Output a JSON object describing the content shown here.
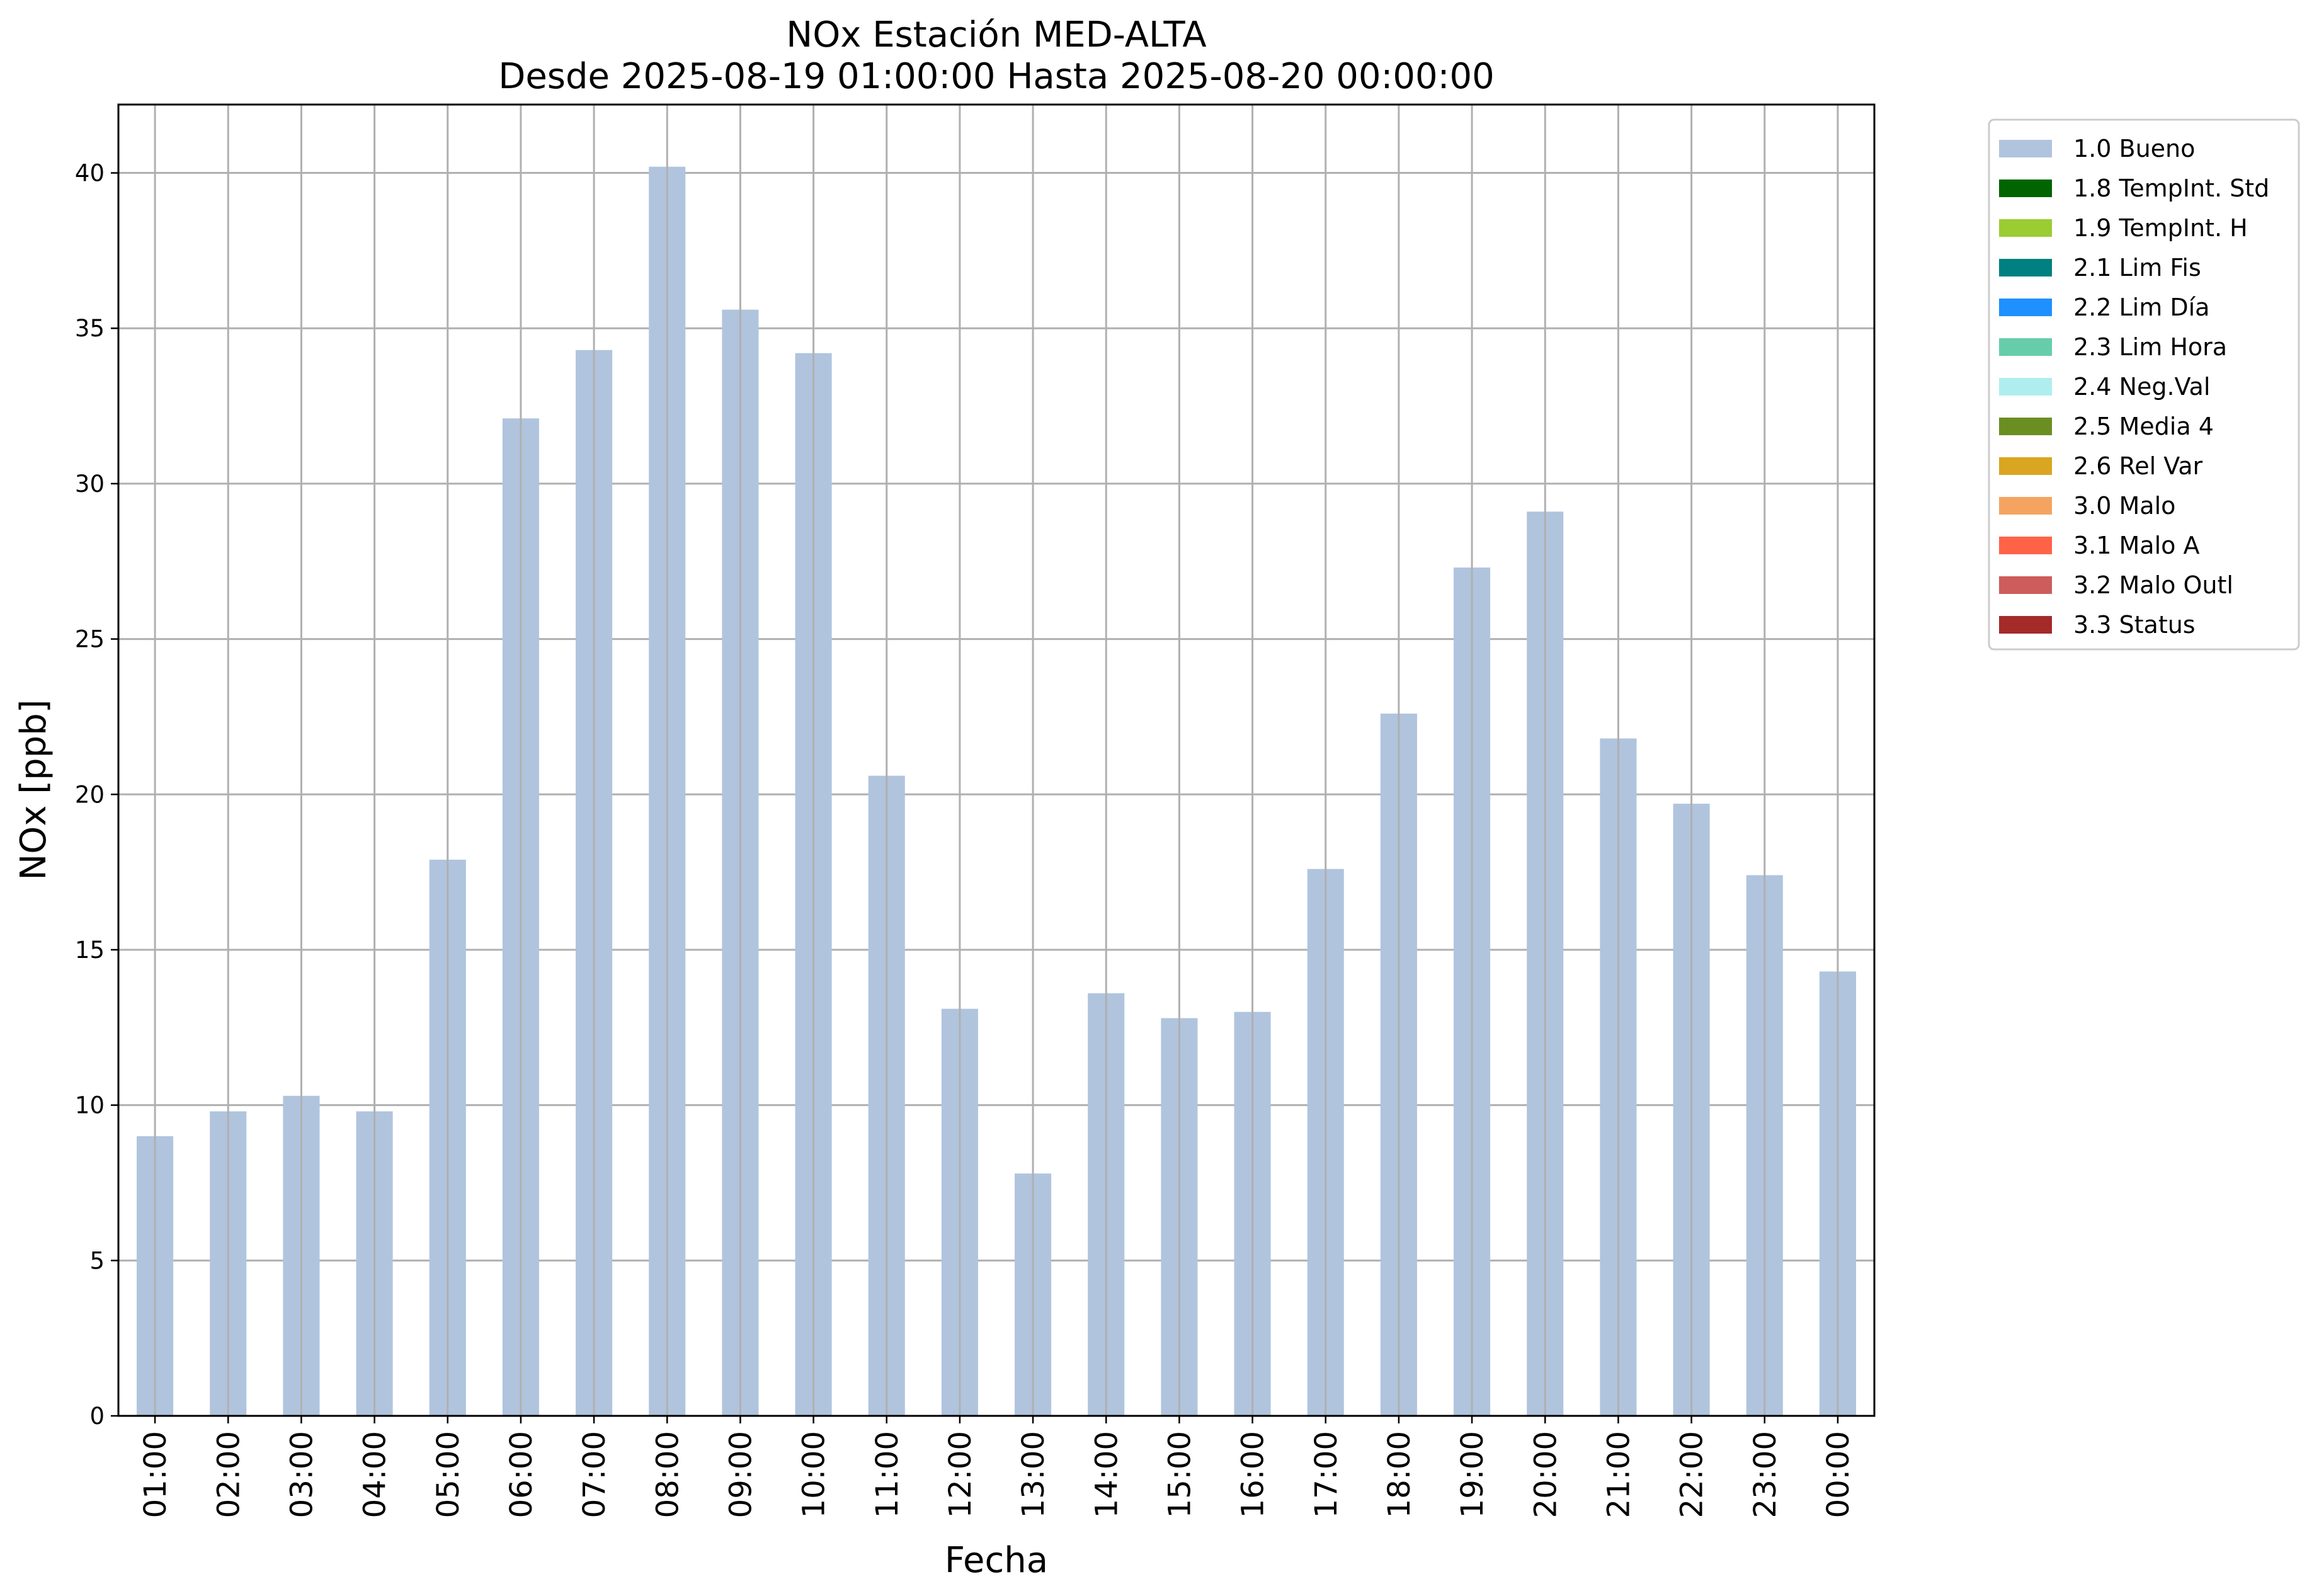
{
  "chart_data": {
    "type": "bar",
    "title": "NOx Estación MED-ALTA",
    "subtitle": "Desde 2025-08-19 01:00:00 Hasta 2025-08-20 00:00:00",
    "xlabel": "Fecha",
    "ylabel": "NOx [ppb]",
    "ylim": [
      0,
      42.2
    ],
    "yticks": [
      0,
      5,
      10,
      15,
      20,
      25,
      30,
      35,
      40
    ],
    "grid": true,
    "legend_position": "outside-right-top",
    "categories": [
      "01:00",
      "02:00",
      "03:00",
      "04:00",
      "05:00",
      "06:00",
      "07:00",
      "08:00",
      "09:00",
      "10:00",
      "11:00",
      "12:00",
      "13:00",
      "14:00",
      "15:00",
      "16:00",
      "17:00",
      "18:00",
      "19:00",
      "20:00",
      "21:00",
      "22:00",
      "23:00",
      "00:00"
    ],
    "series": [
      {
        "name": "1.0 Bueno",
        "color": "#b0c4de",
        "values": [
          9.0,
          9.8,
          10.3,
          9.8,
          17.9,
          32.1,
          34.3,
          40.2,
          35.6,
          34.2,
          20.6,
          13.1,
          7.8,
          13.6,
          12.8,
          13.0,
          17.6,
          22.6,
          27.3,
          29.1,
          21.8,
          19.7,
          17.4,
          14.3
        ]
      }
    ],
    "legend": [
      {
        "label": "1.0 Bueno",
        "color": "#b0c4de"
      },
      {
        "label": "1.8 TempInt. Std",
        "color": "#006400"
      },
      {
        "label": "1.9 TempInt. H",
        "color": "#9acd32"
      },
      {
        "label": "2.1 Lim Fis",
        "color": "#008080"
      },
      {
        "label": "2.2 Lim Día",
        "color": "#1e90ff"
      },
      {
        "label": "2.3 Lim Hora",
        "color": "#66cdaa"
      },
      {
        "label": "2.4 Neg.Val",
        "color": "#afeeee"
      },
      {
        "label": "2.5 Media 4",
        "color": "#6b8e23"
      },
      {
        "label": "2.6 Rel Var",
        "color": "#daa520"
      },
      {
        "label": "3.0 Malo",
        "color": "#f4a460"
      },
      {
        "label": "3.1 Malo A",
        "color": "#ff6347"
      },
      {
        "label": "3.2 Malo Outl",
        "color": "#cd5c5c"
      },
      {
        "label": "3.3 Status",
        "color": "#a52a2a"
      }
    ]
  }
}
